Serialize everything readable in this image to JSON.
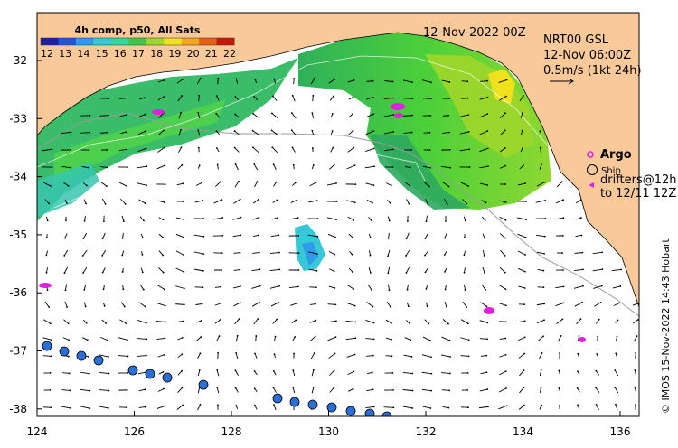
{
  "map": {
    "composite_label": "4h comp, p50, All Sats",
    "date_label": "12-Nov-2022 00Z",
    "product": "NRT00 GSL",
    "product_time": "12-Nov 06:00Z",
    "scale_label": "0.5m/s (1kt 24h)",
    "credit": "© IMOS 15-Nov-2022 14:43 Hobart"
  },
  "colorbar": {
    "labels": [
      "12",
      "13",
      "14",
      "15",
      "16",
      "17",
      "18",
      "19",
      "20",
      "21",
      "22"
    ],
    "colors": [
      "#1b1fa0",
      "#1f57d8",
      "#2e9be8",
      "#37c7d8",
      "#3fd0a0",
      "#3fc848",
      "#9fd62a",
      "#f0e11a",
      "#f2a81a",
      "#e86012",
      "#c81a0a"
    ]
  },
  "legend": {
    "argo": "Argo",
    "ship": "Ship",
    "drifters": "drifters@12h",
    "drifters_range": "to 12/11 12Z"
  },
  "axes": {
    "x_ticks": [
      "124",
      "126",
      "128",
      "130",
      "132",
      "134",
      "136"
    ],
    "y_ticks": [
      "-32",
      "-33",
      "-34",
      "-35",
      "-36",
      "-37",
      "-38"
    ]
  },
  "colors": {
    "land": "#f9c99a",
    "argo": "#e020e0",
    "drifter_fill": "#2a6fd6"
  }
}
